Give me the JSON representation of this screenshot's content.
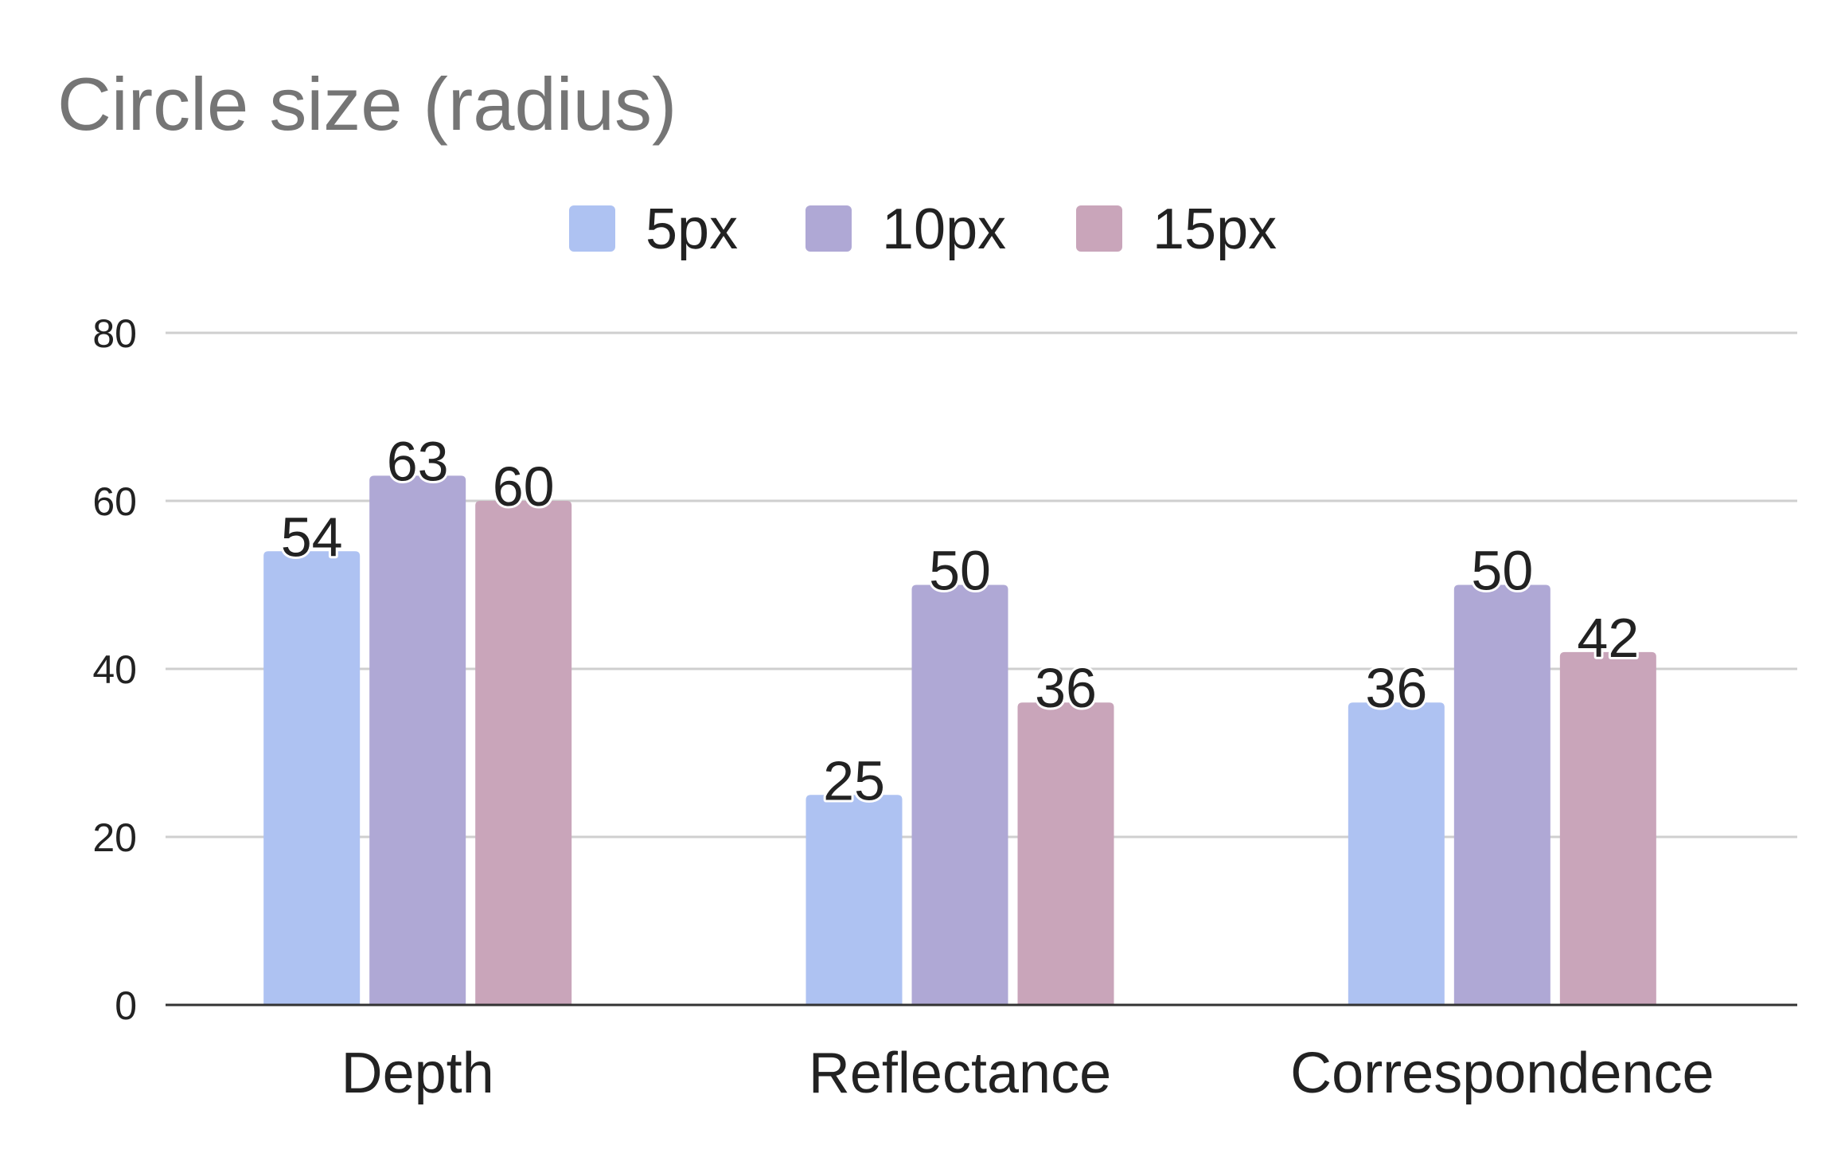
{
  "chart_data": {
    "type": "bar",
    "title": "Circle size (radius)",
    "xlabel": "",
    "ylabel": "",
    "categories": [
      "Depth",
      "Reflectance",
      "Correspondence"
    ],
    "series": [
      {
        "name": "5px",
        "values": [
          54,
          25,
          36
        ],
        "color": "#aec2f2"
      },
      {
        "name": "10px",
        "values": [
          63,
          50,
          50
        ],
        "color": "#afa8d5"
      },
      {
        "name": "15px",
        "values": [
          60,
          36,
          42
        ],
        "color": "#c9a5ba"
      }
    ],
    "ylim": [
      0,
      80
    ],
    "yticks": [
      0,
      20,
      40,
      60,
      80
    ],
    "grid": true,
    "legend_position": "top-center",
    "data_labels": true
  }
}
